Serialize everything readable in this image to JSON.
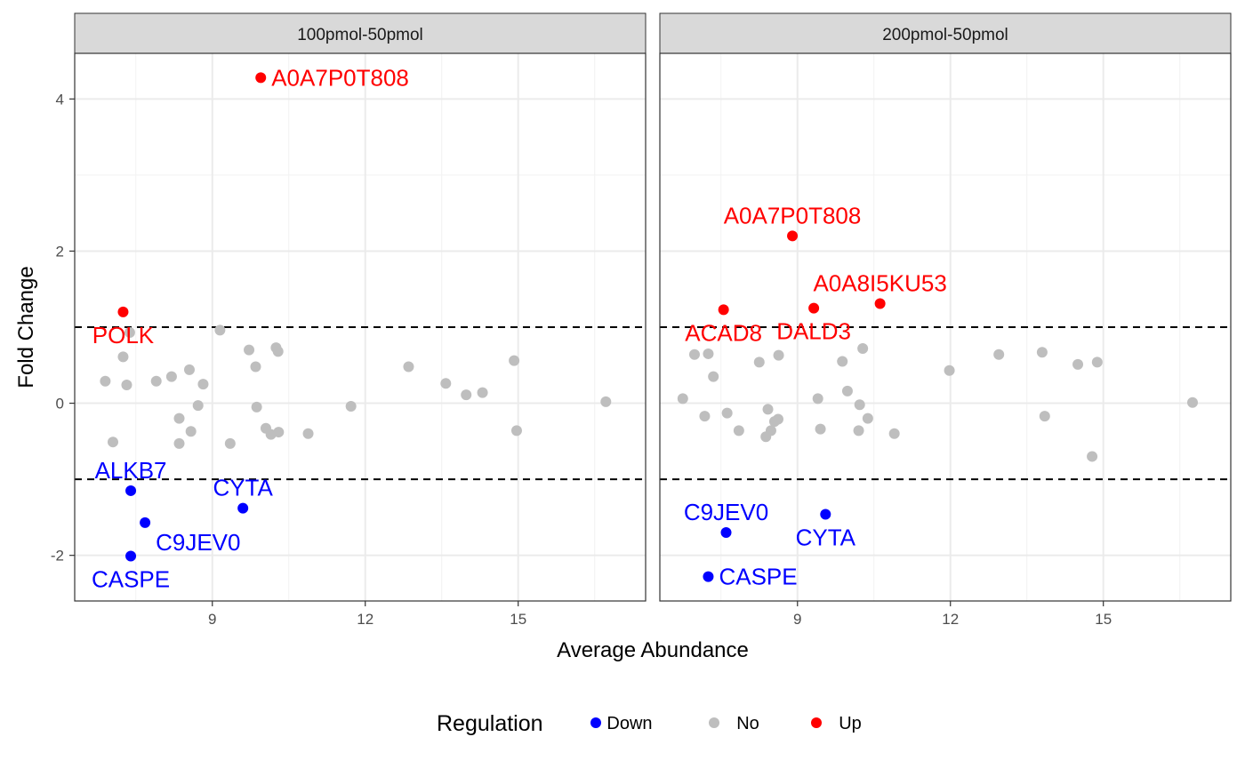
{
  "chart_data": {
    "type": "scatter",
    "facets": [
      "100pmol-50pmol",
      "200pmol-50pmol"
    ],
    "xlabel": "Average Abundance",
    "ylabel": "Fold Change",
    "xlim": [
      6.3,
      17.5
    ],
    "ylim": [
      -2.6,
      4.6
    ],
    "x_ticks": [
      9,
      12,
      15
    ],
    "y_ticks": [
      -2,
      0,
      2,
      4
    ],
    "thresholds": [
      1,
      -1
    ],
    "grid": true,
    "legend": {
      "title": "Regulation",
      "placement": "bottom",
      "entries": [
        {
          "label": "Down",
          "color": "#0000ff"
        },
        {
          "label": "No",
          "color": "#bebebe"
        },
        {
          "label": "Up",
          "color": "#ff0000"
        }
      ]
    },
    "colors": {
      "Down": "#0000ff",
      "No": "#bebebe",
      "Up": "#ff0000"
    },
    "panels": [
      {
        "facet": "100pmol-50pmol",
        "points": [
          {
            "x": 9.95,
            "y": 4.28,
            "reg": "Up",
            "label": "A0A7P0T808",
            "la": "right"
          },
          {
            "x": 7.25,
            "y": 1.2,
            "reg": "Up",
            "label": "POLK",
            "la": "below"
          },
          {
            "x": 7.4,
            "y": -1.15,
            "reg": "Down",
            "label": "ALKB7",
            "la": "above"
          },
          {
            "x": 7.68,
            "y": -1.57,
            "reg": "Down",
            "label": "C9JEV0",
            "la": "below-right"
          },
          {
            "x": 7.4,
            "y": -2.01,
            "reg": "Down",
            "label": "CASPE",
            "la": "below"
          },
          {
            "x": 9.6,
            "y": -1.38,
            "reg": "Down",
            "label": "CYTA",
            "la": "above"
          },
          {
            "x": 6.9,
            "y": 0.29,
            "reg": "No"
          },
          {
            "x": 7.05,
            "y": -0.51,
            "reg": "No"
          },
          {
            "x": 7.25,
            "y": 0.61,
            "reg": "No"
          },
          {
            "x": 7.32,
            "y": 0.24,
            "reg": "No"
          },
          {
            "x": 7.38,
            "y": 0.93,
            "reg": "No"
          },
          {
            "x": 7.9,
            "y": 0.29,
            "reg": "No"
          },
          {
            "x": 8.2,
            "y": 0.35,
            "reg": "No"
          },
          {
            "x": 8.35,
            "y": -0.2,
            "reg": "No"
          },
          {
            "x": 8.35,
            "y": -0.53,
            "reg": "No"
          },
          {
            "x": 8.55,
            "y": 0.44,
            "reg": "No"
          },
          {
            "x": 8.58,
            "y": -0.37,
            "reg": "No"
          },
          {
            "x": 8.72,
            "y": -0.03,
            "reg": "No"
          },
          {
            "x": 8.82,
            "y": 0.25,
            "reg": "No"
          },
          {
            "x": 9.15,
            "y": 0.96,
            "reg": "No"
          },
          {
            "x": 9.35,
            "y": -0.53,
            "reg": "No"
          },
          {
            "x": 9.72,
            "y": 0.7,
            "reg": "No"
          },
          {
            "x": 9.85,
            "y": 0.48,
            "reg": "No"
          },
          {
            "x": 9.87,
            "y": -0.05,
            "reg": "No"
          },
          {
            "x": 10.05,
            "y": -0.33,
            "reg": "No"
          },
          {
            "x": 10.15,
            "y": -0.41,
            "reg": "No"
          },
          {
            "x": 10.25,
            "y": 0.73,
            "reg": "No"
          },
          {
            "x": 10.29,
            "y": 0.68,
            "reg": "No"
          },
          {
            "x": 10.3,
            "y": -0.38,
            "reg": "No"
          },
          {
            "x": 10.88,
            "y": -0.4,
            "reg": "No"
          },
          {
            "x": 11.72,
            "y": -0.04,
            "reg": "No"
          },
          {
            "x": 12.85,
            "y": 0.48,
            "reg": "No"
          },
          {
            "x": 13.58,
            "y": 0.26,
            "reg": "No"
          },
          {
            "x": 13.98,
            "y": 0.11,
            "reg": "No"
          },
          {
            "x": 14.3,
            "y": 0.14,
            "reg": "No"
          },
          {
            "x": 14.92,
            "y": 0.56,
            "reg": "No"
          },
          {
            "x": 14.97,
            "y": -0.36,
            "reg": "No"
          },
          {
            "x": 16.72,
            "y": 0.02,
            "reg": "No"
          }
        ]
      },
      {
        "facet": "200pmol-50pmol",
        "points": [
          {
            "x": 8.9,
            "y": 2.2,
            "reg": "Up",
            "label": "A0A7P0T808",
            "la": "above"
          },
          {
            "x": 7.55,
            "y": 1.23,
            "reg": "Up",
            "label": "ACAD8",
            "la": "below"
          },
          {
            "x": 9.32,
            "y": 1.25,
            "reg": "Up",
            "label": "DALD3",
            "la": "below"
          },
          {
            "x": 10.62,
            "y": 1.31,
            "reg": "Up",
            "label": "A0A8I5KU53",
            "la": "above"
          },
          {
            "x": 7.6,
            "y": -1.7,
            "reg": "Down",
            "label": "C9JEV0",
            "la": "above"
          },
          {
            "x": 9.55,
            "y": -1.46,
            "reg": "Down",
            "label": "CYTA",
            "la": "below"
          },
          {
            "x": 7.25,
            "y": -2.28,
            "reg": "Down",
            "label": "CASPE",
            "la": "right"
          },
          {
            "x": 6.75,
            "y": 0.06,
            "reg": "No"
          },
          {
            "x": 6.98,
            "y": 0.64,
            "reg": "No"
          },
          {
            "x": 7.18,
            "y": -0.17,
            "reg": "No"
          },
          {
            "x": 7.25,
            "y": 0.65,
            "reg": "No"
          },
          {
            "x": 7.35,
            "y": 0.35,
            "reg": "No"
          },
          {
            "x": 7.62,
            "y": -0.13,
            "reg": "No"
          },
          {
            "x": 7.85,
            "y": -0.36,
            "reg": "No"
          },
          {
            "x": 8.25,
            "y": 0.54,
            "reg": "No"
          },
          {
            "x": 8.38,
            "y": -0.44,
            "reg": "No"
          },
          {
            "x": 8.42,
            "y": -0.08,
            "reg": "No"
          },
          {
            "x": 8.48,
            "y": -0.36,
            "reg": "No"
          },
          {
            "x": 8.55,
            "y": -0.24,
            "reg": "No"
          },
          {
            "x": 8.62,
            "y": -0.21,
            "reg": "No"
          },
          {
            "x": 8.63,
            "y": 0.63,
            "reg": "No"
          },
          {
            "x": 9.4,
            "y": 0.06,
            "reg": "No"
          },
          {
            "x": 9.45,
            "y": -0.34,
            "reg": "No"
          },
          {
            "x": 9.88,
            "y": 0.55,
            "reg": "No"
          },
          {
            "x": 9.98,
            "y": 0.16,
            "reg": "No"
          },
          {
            "x": 10.2,
            "y": -0.36,
            "reg": "No"
          },
          {
            "x": 10.22,
            "y": -0.02,
            "reg": "No"
          },
          {
            "x": 10.28,
            "y": 0.72,
            "reg": "No"
          },
          {
            "x": 10.38,
            "y": -0.2,
            "reg": "No"
          },
          {
            "x": 10.9,
            "y": -0.4,
            "reg": "No"
          },
          {
            "x": 11.98,
            "y": 0.43,
            "reg": "No"
          },
          {
            "x": 12.95,
            "y": 0.64,
            "reg": "No"
          },
          {
            "x": 13.8,
            "y": 0.67,
            "reg": "No"
          },
          {
            "x": 13.85,
            "y": -0.17,
            "reg": "No"
          },
          {
            "x": 14.5,
            "y": 0.51,
            "reg": "No"
          },
          {
            "x": 14.78,
            "y": -0.7,
            "reg": "No"
          },
          {
            "x": 14.88,
            "y": 0.54,
            "reg": "No"
          },
          {
            "x": 16.75,
            "y": 0.01,
            "reg": "No"
          }
        ]
      }
    ]
  }
}
